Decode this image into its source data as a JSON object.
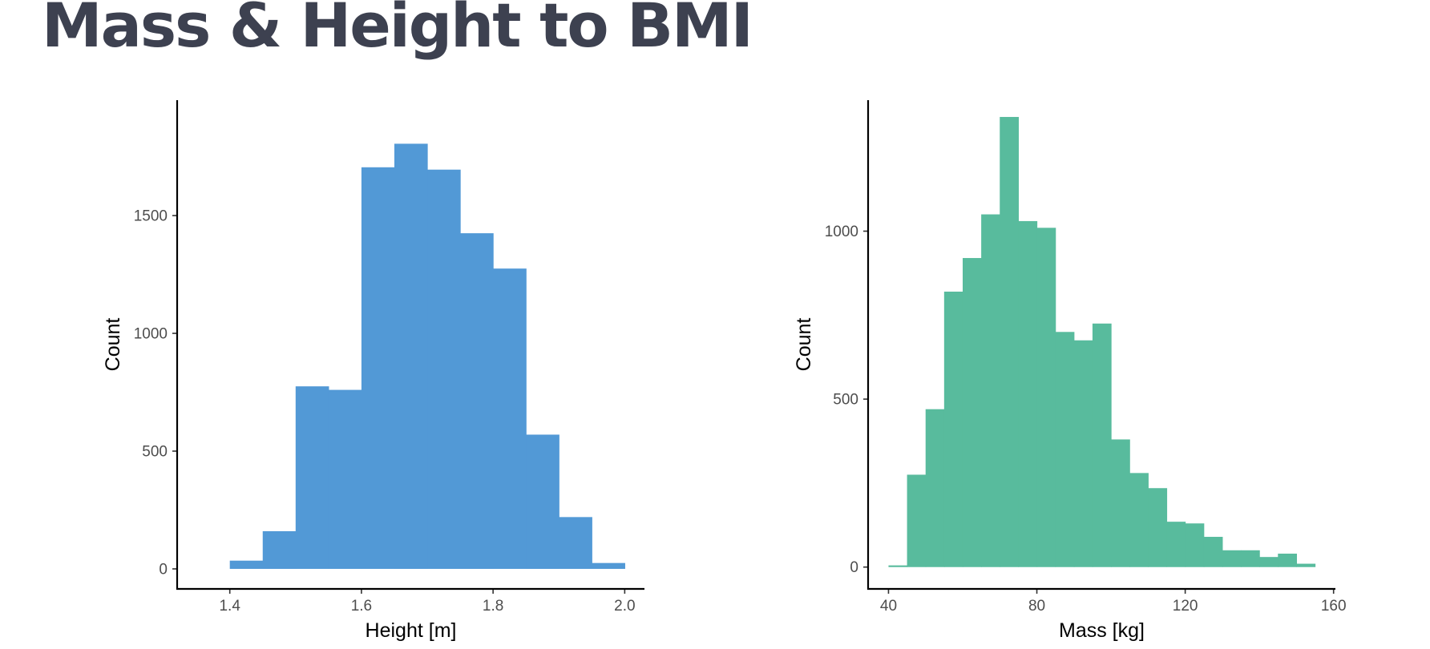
{
  "page": {
    "title": "Mass & Height to BMI"
  },
  "colors": {
    "title": "#3d4150",
    "axis": "#000000",
    "tick_label": "#4d4d4d",
    "height_fill": "#5299d6",
    "mass_fill": "#58bb9d"
  },
  "chart_data": [
    {
      "type": "histogram",
      "fill_color": "#5299d6",
      "xlabel": "Height [m]",
      "ylabel": "Count",
      "xlim": [
        1.32,
        2.03
      ],
      "ylim": [
        -85,
        1990
      ],
      "x_ticks": [
        1.4,
        1.6,
        1.8,
        2.0
      ],
      "x_tick_labels": [
        "1.4",
        "1.6",
        "1.8",
        "2.0"
      ],
      "y_ticks": [
        0,
        500,
        1000,
        1500
      ],
      "y_tick_labels": [
        "0",
        "500",
        "1000",
        "1500"
      ],
      "grid": false,
      "legend": "none",
      "bins": [
        {
          "x0": 1.4,
          "x1": 1.45,
          "count": 35
        },
        {
          "x0": 1.45,
          "x1": 1.5,
          "count": 160
        },
        {
          "x0": 1.5,
          "x1": 1.55,
          "count": 775
        },
        {
          "x0": 1.55,
          "x1": 1.6,
          "count": 760
        },
        {
          "x0": 1.6,
          "x1": 1.65,
          "count": 1705
        },
        {
          "x0": 1.65,
          "x1": 1.7,
          "count": 1805
        },
        {
          "x0": 1.7,
          "x1": 1.75,
          "count": 1695
        },
        {
          "x0": 1.75,
          "x1": 1.8,
          "count": 1425
        },
        {
          "x0": 1.8,
          "x1": 1.85,
          "count": 1275
        },
        {
          "x0": 1.85,
          "x1": 1.9,
          "count": 570
        },
        {
          "x0": 1.9,
          "x1": 1.95,
          "count": 220
        },
        {
          "x0": 1.95,
          "x1": 2.0,
          "count": 25
        }
      ]
    },
    {
      "type": "histogram",
      "fill_color": "#58bb9d",
      "xlabel": "Mass [kg]",
      "ylabel": "Count",
      "xlim": [
        34.5,
        160.5
      ],
      "ylim": [
        -65,
        1390
      ],
      "x_ticks": [
        40,
        80,
        120,
        160
      ],
      "x_tick_labels": [
        "40",
        "80",
        "120",
        "160"
      ],
      "y_ticks": [
        0,
        500,
        1000
      ],
      "y_tick_labels": [
        "0",
        "500",
        "1000"
      ],
      "grid": false,
      "legend": "none",
      "bins": [
        {
          "x0": 40,
          "x1": 45,
          "count": 5
        },
        {
          "x0": 45,
          "x1": 50,
          "count": 275
        },
        {
          "x0": 50,
          "x1": 55,
          "count": 470
        },
        {
          "x0": 55,
          "x1": 60,
          "count": 820
        },
        {
          "x0": 60,
          "x1": 65,
          "count": 920
        },
        {
          "x0": 65,
          "x1": 70,
          "count": 1050
        },
        {
          "x0": 70,
          "x1": 75,
          "count": 1340
        },
        {
          "x0": 75,
          "x1": 80,
          "count": 1030
        },
        {
          "x0": 80,
          "x1": 85,
          "count": 1010
        },
        {
          "x0": 85,
          "x1": 90,
          "count": 700
        },
        {
          "x0": 90,
          "x1": 95,
          "count": 675
        },
        {
          "x0": 95,
          "x1": 100,
          "count": 725
        },
        {
          "x0": 100,
          "x1": 105,
          "count": 380
        },
        {
          "x0": 105,
          "x1": 110,
          "count": 280
        },
        {
          "x0": 110,
          "x1": 115,
          "count": 235
        },
        {
          "x0": 115,
          "x1": 120,
          "count": 135
        },
        {
          "x0": 120,
          "x1": 125,
          "count": 130
        },
        {
          "x0": 125,
          "x1": 130,
          "count": 90
        },
        {
          "x0": 130,
          "x1": 135,
          "count": 50
        },
        {
          "x0": 135,
          "x1": 140,
          "count": 50
        },
        {
          "x0": 140,
          "x1": 145,
          "count": 30
        },
        {
          "x0": 145,
          "x1": 150,
          "count": 40
        },
        {
          "x0": 150,
          "x1": 155,
          "count": 10
        }
      ]
    }
  ]
}
